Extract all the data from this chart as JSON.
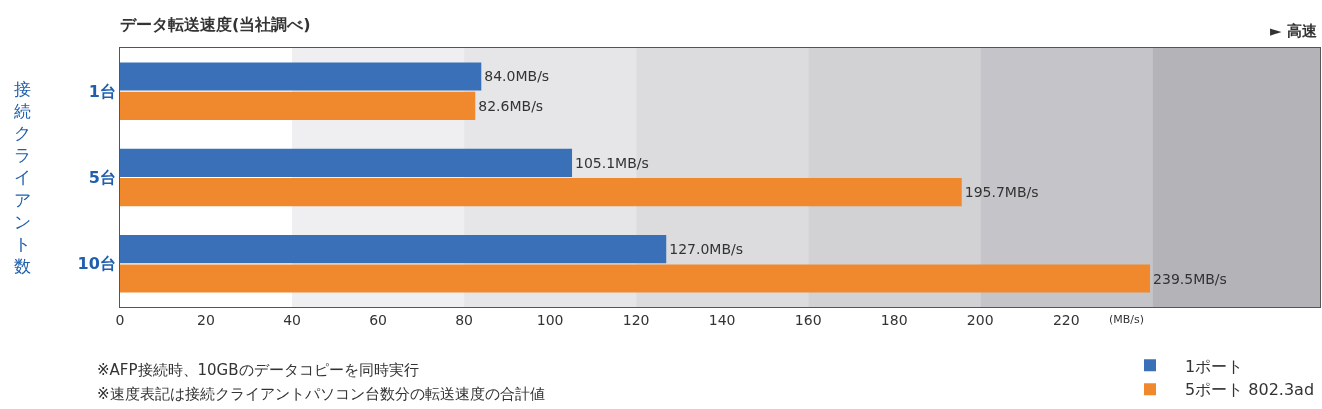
{
  "chart_data": {
    "type": "bar",
    "orientation": "horizontal",
    "title": "データ転送速度(当社調べ)",
    "xlabel": "(MB/s)",
    "ylabel": "接続クライアント数",
    "categories": [
      "1台",
      "5台",
      "10台"
    ],
    "series": [
      {
        "name": "1ポート",
        "color": "#3a70b8",
        "values": [
          84.0,
          105.1,
          127.0
        ],
        "value_labels": [
          "84.0MB/s",
          "105.1MB/s",
          "127.0MB/s"
        ]
      },
      {
        "name": "5ポート 802.3ad",
        "color": "#f0892e",
        "values": [
          82.6,
          195.7,
          239.5
        ],
        "value_labels": [
          "82.6MB/s",
          "195.7MB/s",
          "239.5MB/s"
        ]
      }
    ],
    "xlim": [
      0,
      279
    ],
    "xticks": [
      0,
      20,
      40,
      60,
      80,
      100,
      120,
      140,
      160,
      180,
      200,
      220
    ],
    "bands": [
      {
        "axis": "x",
        "from": 40,
        "to": 80,
        "color": "#efeff1"
      },
      {
        "axis": "x",
        "from": 80,
        "to": 120,
        "color": "#e6e6e8"
      },
      {
        "axis": "x",
        "from": 120,
        "to": 160,
        "color": "#dcdcdf"
      },
      {
        "axis": "x",
        "from": 160,
        "to": 200,
        "color": "#d2d2d5"
      },
      {
        "axis": "x",
        "from": 200,
        "to": 240,
        "color": "#c5c5c9"
      },
      {
        "axis": "x",
        "from": 240,
        "to": 279,
        "color": "#b3b3b8"
      }
    ],
    "annotations": [
      "► 高速",
      "※AFP接続時、10GBのデータコピーを同時実行",
      "※速度表記は接続クライアントパソコン台数分の転送速度の合計値"
    ],
    "legend": "bottom right",
    "grid": false
  }
}
